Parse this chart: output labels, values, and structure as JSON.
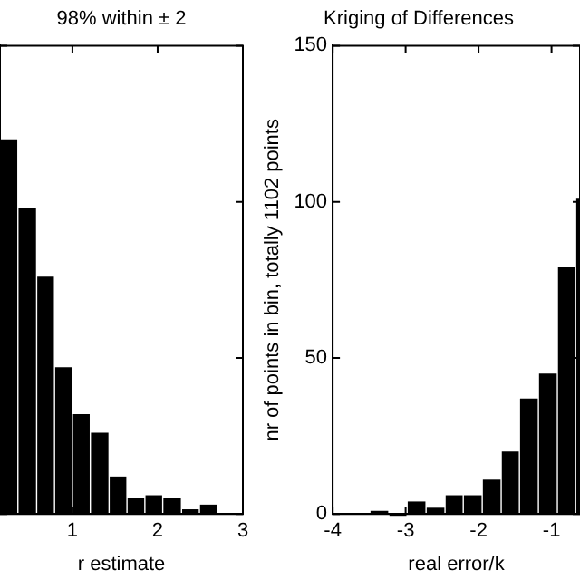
{
  "chart_data": [
    {
      "type": "histogram",
      "title": "98% within ± 2",
      "xlabel": "r estimate",
      "bins": [
        0.15,
        0.36,
        0.58,
        0.79,
        1.0,
        1.21,
        1.43,
        1.64,
        1.85,
        2.06,
        2.28,
        2.49,
        2.7
      ],
      "values": [
        120,
        98,
        76,
        47,
        32,
        26,
        12,
        5,
        6,
        5,
        1.5,
        3
      ],
      "color": "#000000",
      "xlim": [
        0.15,
        3
      ],
      "xticks": [
        1,
        2,
        3
      ],
      "ylim": [
        0,
        150
      ],
      "yticks": [
        {
          "value": 0,
          "label": null
        },
        {
          "value": 50,
          "label": null
        },
        {
          "value": 100,
          "label": null
        },
        {
          "value": 150,
          "label": null
        }
      ],
      "tick_labels": "x"
    },
    {
      "type": "histogram",
      "title": "Kriging of Differences",
      "xlabel": "real error/k",
      "ylabel": "nr of points in bin, totally 1102 points",
      "bins": [
        -3.49,
        -3.23,
        -2.98,
        -2.72,
        -2.46,
        -2.21,
        -1.95,
        -1.69,
        -1.44,
        -1.18,
        -0.92,
        -0.67,
        -0.61
      ],
      "values": [
        1,
        0,
        4,
        2,
        6,
        6,
        11,
        20,
        37,
        45,
        79,
        101
      ],
      "color": "#000000",
      "xlim": [
        -4,
        -0.61
      ],
      "xticks": [
        -4,
        -3,
        -2,
        -1
      ],
      "ylim": [
        0,
        150
      ],
      "yticks": [
        0,
        50,
        100,
        150
      ]
    }
  ]
}
